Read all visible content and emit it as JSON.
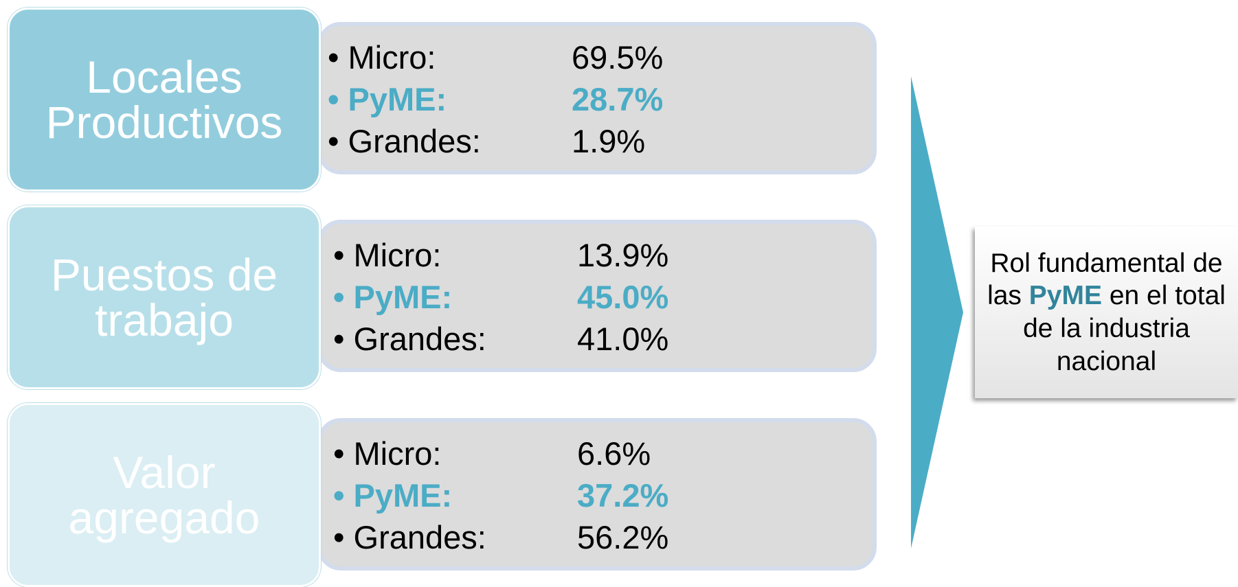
{
  "groups": [
    {
      "title": "Locales Productivos",
      "items": [
        {
          "label": "Micro:",
          "value": "69.5%"
        },
        {
          "label": "PyME:",
          "value": "28.7%"
        },
        {
          "label": "Grandes:",
          "value": "1.9%"
        }
      ]
    },
    {
      "title": "Puestos de trabajo",
      "items": [
        {
          "label": "Micro:",
          "value": "13.9%"
        },
        {
          "label": "PyME:",
          "value": "45.0%"
        },
        {
          "label": "Grandes:",
          "value": "41.0%"
        }
      ]
    },
    {
      "title": "Valor agregado",
      "items": [
        {
          "label": "Micro:",
          "value": "6.6%"
        },
        {
          "label": "PyME:",
          "value": "37.2%"
        },
        {
          "label": "Grandes:",
          "value": "56.2%"
        }
      ]
    }
  ],
  "conclusion": {
    "before": "Rol fundamental de las",
    "highlight": "PyME",
    "after": "en el total de la industria nacional"
  }
}
